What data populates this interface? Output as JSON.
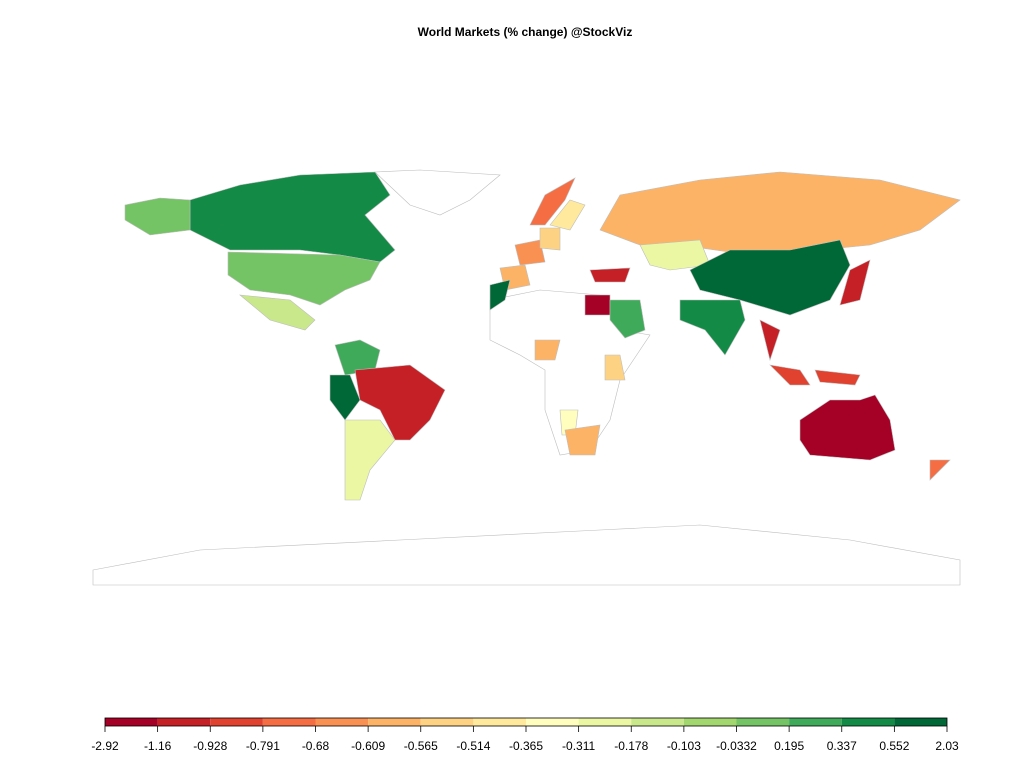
{
  "chart_data": {
    "type": "choropleth",
    "title": "World Markets (% change) @StockViz",
    "legend": {
      "breaks": [
        -2.92,
        -1.16,
        -0.928,
        -0.791,
        -0.68,
        -0.609,
        -0.565,
        -0.514,
        -0.365,
        -0.311,
        -0.178,
        -0.103,
        -0.0332,
        0.195,
        0.337,
        0.552,
        2.03
      ],
      "colors": [
        "#a50026",
        "#c62027",
        "#e0422f",
        "#f46d43",
        "#f99153",
        "#fdb366",
        "#fed283",
        "#fee99d",
        "#fffebe",
        "#ebf7a3",
        "#c8e88b",
        "#a2d66f",
        "#74c365",
        "#3faa59",
        "#138b47",
        "#006837"
      ]
    }
  }
}
